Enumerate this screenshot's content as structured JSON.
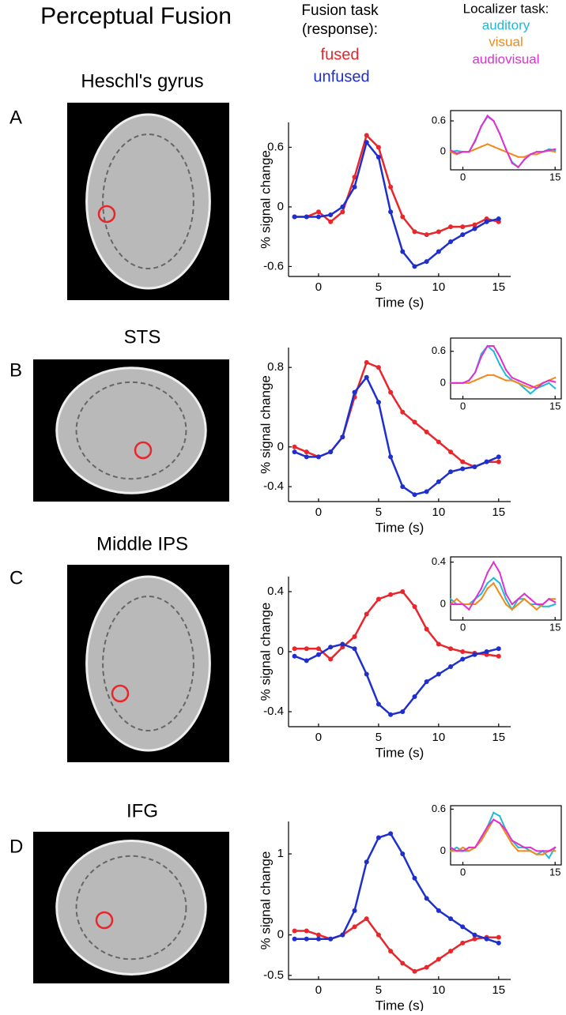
{
  "header": {
    "title": "Perceptual Fusion",
    "fusion_legend_title": "Fusion task\n(response):",
    "localizer_legend_title": "Localizer task:"
  },
  "panels": [
    {
      "label": "A",
      "region": "Heschl's gyrus"
    },
    {
      "label": "B",
      "region": "STS"
    },
    {
      "label": "C",
      "region": "Middle IPS"
    },
    {
      "label": "D",
      "region": "IFG"
    }
  ],
  "chart_data": [
    {
      "type": "line",
      "xlabel": "Time (s)",
      "ylabel": "% signal change",
      "x": [
        -2,
        -1,
        0,
        1,
        2,
        3,
        4,
        5,
        6,
        7,
        8,
        9,
        10,
        11,
        12,
        13,
        14,
        15
      ],
      "xlim": [
        -2.5,
        16
      ],
      "xticks": [
        0,
        5,
        10,
        15
      ],
      "ylim": [
        -0.7,
        0.85
      ],
      "yticks": [
        -0.6,
        0,
        0.6
      ],
      "series": [
        {
          "name": "fused",
          "color": "#e8262b",
          "values": [
            -0.1,
            -0.1,
            -0.05,
            -0.15,
            -0.05,
            0.3,
            0.72,
            0.6,
            0.2,
            -0.1,
            -0.25,
            -0.28,
            -0.25,
            -0.2,
            -0.2,
            -0.18,
            -0.12,
            -0.15
          ]
        },
        {
          "name": "unfused",
          "color": "#1f2fcc",
          "values": [
            -0.1,
            -0.1,
            -0.1,
            -0.08,
            0,
            0.2,
            0.65,
            0.5,
            -0.05,
            -0.45,
            -0.6,
            -0.55,
            -0.45,
            -0.35,
            -0.28,
            -0.22,
            -0.15,
            -0.12
          ]
        }
      ]
    },
    {
      "type": "line",
      "x": [
        -2,
        -1,
        0,
        1,
        2,
        3,
        4,
        5,
        6,
        7,
        8,
        9,
        10,
        11,
        12,
        13,
        14,
        15
      ],
      "xlim": [
        -2,
        16
      ],
      "xticks": [
        0,
        15
      ],
      "ylim": [
        -0.35,
        0.8
      ],
      "yticks": [
        0,
        0.6
      ],
      "series": [
        {
          "name": "auditory",
          "color": "#22b8d8",
          "values": [
            0,
            0.02,
            0,
            0,
            0.2,
            0.5,
            0.68,
            0.6,
            0.35,
            0.05,
            -0.2,
            -0.3,
            -0.15,
            -0.05,
            0,
            0,
            0.05,
            0.03
          ]
        },
        {
          "name": "visual",
          "color": "#f08a1c",
          "values": [
            0,
            -0.05,
            0,
            0,
            0.05,
            0.1,
            0.15,
            0.1,
            0.05,
            0,
            -0.05,
            -0.1,
            -0.1,
            -0.05,
            -0.05,
            0,
            0.02,
            0
          ]
        },
        {
          "name": "audiovisual",
          "color": "#e030d0",
          "values": [
            0.03,
            -0.03,
            0,
            0,
            0.22,
            0.5,
            0.7,
            0.6,
            0.35,
            0.05,
            -0.22,
            -0.3,
            -0.15,
            -0.05,
            0,
            0,
            0.03,
            0.05
          ]
        }
      ]
    },
    {
      "type": "line",
      "xlabel": "Time (s)",
      "ylabel": "% signal change",
      "x": [
        -2,
        -1,
        0,
        1,
        2,
        3,
        4,
        5,
        6,
        7,
        8,
        9,
        10,
        11,
        12,
        13,
        14,
        15
      ],
      "xlim": [
        -2.5,
        16
      ],
      "xticks": [
        0,
        5,
        10,
        15
      ],
      "ylim": [
        -0.55,
        1.0
      ],
      "yticks": [
        -0.4,
        0,
        0.8
      ],
      "series": [
        {
          "color": "#e8262b",
          "values": [
            0,
            -0.05,
            -0.1,
            -0.05,
            0.1,
            0.5,
            0.85,
            0.8,
            0.55,
            0.35,
            0.25,
            0.15,
            0.05,
            -0.05,
            -0.15,
            -0.2,
            -0.15,
            -0.15
          ]
        },
        {
          "color": "#1f2fcc",
          "values": [
            -0.05,
            -0.1,
            -0.1,
            -0.05,
            0.1,
            0.55,
            0.7,
            0.45,
            -0.1,
            -0.4,
            -0.48,
            -0.45,
            -0.35,
            -0.25,
            -0.22,
            -0.2,
            -0.15,
            -0.1
          ]
        }
      ]
    },
    {
      "type": "line",
      "x": [
        -2,
        -1,
        0,
        1,
        2,
        3,
        4,
        5,
        6,
        7,
        8,
        9,
        10,
        11,
        12,
        13,
        14,
        15
      ],
      "xlim": [
        -2,
        16
      ],
      "xticks": [
        0,
        15
      ],
      "ylim": [
        -0.3,
        0.85
      ],
      "yticks": [
        0,
        0.6
      ],
      "series": [
        {
          "color": "#22b8d8",
          "values": [
            0,
            0,
            0,
            0.05,
            0.2,
            0.55,
            0.7,
            0.6,
            0.35,
            0.15,
            0.05,
            0,
            -0.1,
            -0.2,
            -0.1,
            -0.05,
            0,
            -0.1
          ]
        },
        {
          "color": "#f08a1c",
          "values": [
            0,
            0,
            0,
            0,
            0.05,
            0.1,
            0.15,
            0.15,
            0.1,
            0.05,
            0.05,
            0,
            -0.05,
            -0.1,
            -0.05,
            0,
            0.05,
            0.1
          ]
        },
        {
          "color": "#e030d0",
          "values": [
            0,
            0,
            0,
            0.05,
            0.2,
            0.5,
            0.7,
            0.7,
            0.5,
            0.25,
            0.1,
            0.05,
            0,
            -0.05,
            -0.1,
            0,
            0.05,
            0.02
          ]
        }
      ]
    },
    {
      "type": "line",
      "xlabel": "Time (s)",
      "ylabel": "% signal change",
      "x": [
        -2,
        -1,
        0,
        1,
        2,
        3,
        4,
        5,
        6,
        7,
        8,
        9,
        10,
        11,
        12,
        13,
        14,
        15
      ],
      "xlim": [
        -2.5,
        16
      ],
      "xticks": [
        0,
        5,
        10,
        15
      ],
      "ylim": [
        -0.5,
        0.5
      ],
      "yticks": [
        -0.4,
        0,
        0.4
      ],
      "series": [
        {
          "color": "#e8262b",
          "values": [
            0.02,
            0.02,
            0.02,
            -0.05,
            0.03,
            0.1,
            0.25,
            0.35,
            0.38,
            0.4,
            0.3,
            0.15,
            0.05,
            0.02,
            0,
            -0.01,
            -0.02,
            -0.03
          ]
        },
        {
          "color": "#1f2fcc",
          "values": [
            -0.03,
            -0.06,
            -0.02,
            0.03,
            0.05,
            0.02,
            -0.15,
            -0.35,
            -0.42,
            -0.4,
            -0.3,
            -0.2,
            -0.15,
            -0.1,
            -0.05,
            -0.02,
            0,
            0.02
          ]
        }
      ]
    },
    {
      "type": "line",
      "x": [
        -2,
        -1,
        0,
        1,
        2,
        3,
        4,
        5,
        6,
        7,
        8,
        9,
        10,
        11,
        12,
        13,
        14,
        15
      ],
      "xlim": [
        -2,
        16
      ],
      "xticks": [
        0,
        15
      ],
      "ylim": [
        -0.15,
        0.45
      ],
      "yticks": [
        0,
        0.4
      ],
      "series": [
        {
          "color": "#22b8d8",
          "values": [
            0.05,
            0,
            0,
            0,
            0.05,
            0.1,
            0.2,
            0.25,
            0.2,
            0.05,
            -0.05,
            0.05,
            0.05,
            0,
            0,
            -0.02,
            -0.02,
            0
          ]
        },
        {
          "color": "#f08a1c",
          "values": [
            0,
            0.05,
            0,
            0,
            0,
            0.05,
            0.15,
            0.2,
            0.1,
            0,
            -0.05,
            0,
            0.05,
            0,
            -0.05,
            0,
            0.05,
            0.05
          ]
        },
        {
          "color": "#e030d0",
          "values": [
            0,
            0,
            0,
            -0.05,
            0.05,
            0.15,
            0.3,
            0.4,
            0.3,
            0.1,
            0,
            0.05,
            0.1,
            0.05,
            0,
            0,
            0.05,
            0.02
          ]
        }
      ]
    },
    {
      "type": "line",
      "xlabel": "Time (s)",
      "ylabel": "% signal change",
      "x": [
        -2,
        -1,
        0,
        1,
        2,
        3,
        4,
        5,
        6,
        7,
        8,
        9,
        10,
        11,
        12,
        13,
        14,
        15
      ],
      "xlim": [
        -2.5,
        16
      ],
      "xticks": [
        0,
        5,
        10,
        15
      ],
      "ylim": [
        -0.55,
        1.4
      ],
      "yticks": [
        -0.5,
        0,
        1
      ],
      "series": [
        {
          "color": "#e8262b",
          "values": [
            0.05,
            0.05,
            0,
            -0.05,
            0,
            0.1,
            0.2,
            0,
            -0.2,
            -0.35,
            -0.45,
            -0.4,
            -0.3,
            -0.2,
            -0.1,
            -0.05,
            -0.03,
            -0.03
          ]
        },
        {
          "color": "#1f2fcc",
          "values": [
            -0.05,
            -0.05,
            -0.05,
            -0.05,
            0,
            0.3,
            0.9,
            1.2,
            1.25,
            1.0,
            0.7,
            0.45,
            0.3,
            0.2,
            0.1,
            0,
            -0.05,
            -0.1
          ]
        }
      ]
    },
    {
      "type": "line",
      "x": [
        -2,
        -1,
        0,
        1,
        2,
        3,
        4,
        5,
        6,
        7,
        8,
        9,
        10,
        11,
        12,
        13,
        14,
        15
      ],
      "xlim": [
        -2,
        16
      ],
      "xticks": [
        0,
        15
      ],
      "ylim": [
        -0.2,
        0.65
      ],
      "yticks": [
        0,
        0.6
      ],
      "series": [
        {
          "color": "#22b8d8",
          "values": [
            0,
            0.05,
            0,
            0,
            0.05,
            0.15,
            0.35,
            0.55,
            0.5,
            0.3,
            0.15,
            0.05,
            0.05,
            0,
            -0.05,
            0,
            -0.1,
            0.05
          ]
        },
        {
          "color": "#f08a1c",
          "values": [
            0,
            0,
            0.05,
            0,
            0.05,
            0.15,
            0.3,
            0.45,
            0.4,
            0.25,
            0.1,
            0,
            0,
            0,
            -0.05,
            -0.05,
            0,
            0
          ]
        },
        {
          "color": "#e030d0",
          "values": [
            0.05,
            0,
            0,
            0.05,
            0.05,
            0.2,
            0.35,
            0.45,
            0.4,
            0.3,
            0.15,
            0.1,
            0.05,
            0.05,
            0,
            0,
            0,
            0.05
          ]
        }
      ]
    }
  ]
}
